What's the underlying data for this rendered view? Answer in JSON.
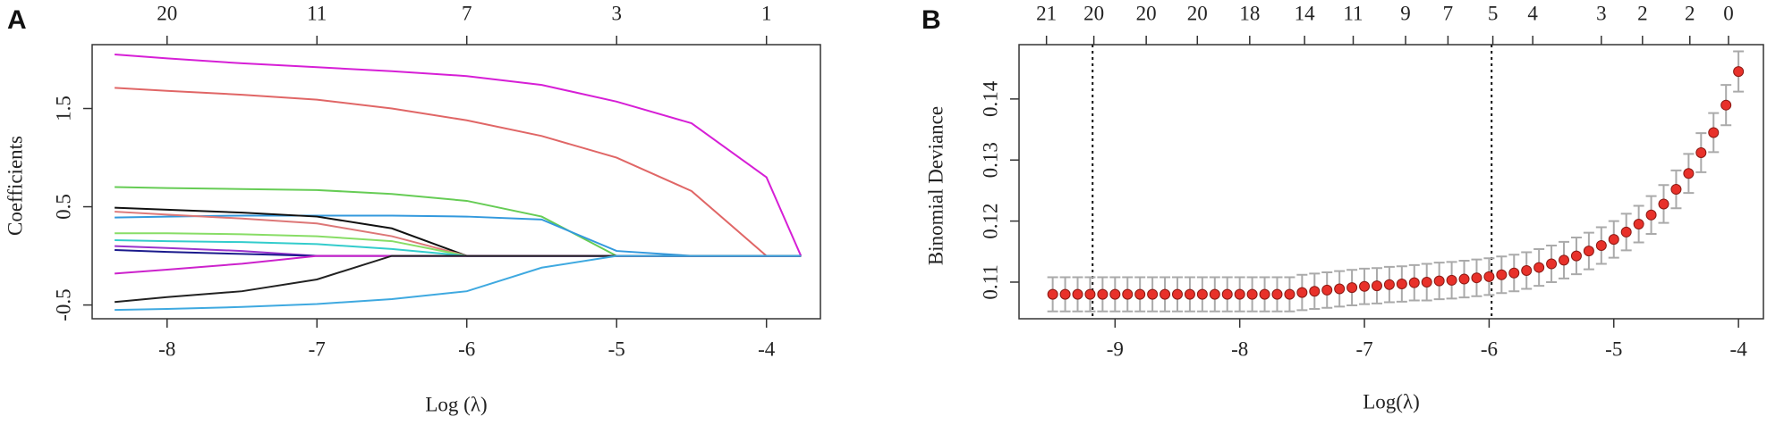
{
  "chart_data": [
    {
      "type": "line",
      "label": "A",
      "xlabel": "Log (λ)",
      "ylabel": "Coefficients",
      "xlim": [
        -8.5,
        -3.64
      ],
      "ylim": [
        -0.64,
        2.15
      ],
      "xticks": [
        -8,
        -7,
        -6,
        -5,
        -4
      ],
      "yticks": [
        -0.5,
        0.5,
        1.5
      ],
      "x2ticks": [
        {
          "value": -8,
          "label": "20"
        },
        {
          "value": -7,
          "label": "11"
        },
        {
          "value": -6,
          "label": "7"
        },
        {
          "value": -5,
          "label": "3"
        },
        {
          "value": -4,
          "label": "1"
        }
      ],
      "x": [
        -8.35,
        -8,
        -7.5,
        -7,
        -6.5,
        -6,
        -5.5,
        -5,
        -4.5,
        -4,
        -3.77
      ],
      "series": [
        {
          "color": "#d61fd6",
          "values": [
            2.05,
            2.01,
            1.96,
            1.92,
            1.88,
            1.83,
            1.74,
            1.57,
            1.35,
            0.8,
            0
          ]
        },
        {
          "color": "#e06666",
          "values": [
            1.71,
            1.68,
            1.64,
            1.59,
            1.5,
            1.38,
            1.22,
            1.0,
            0.66,
            0,
            0
          ]
        },
        {
          "color": "#66cc55",
          "values": [
            0.7,
            0.69,
            0.68,
            0.67,
            0.63,
            0.56,
            0.4,
            0,
            0,
            0,
            0
          ]
        },
        {
          "color": "#3399dd",
          "values": [
            0.39,
            0.4,
            0.41,
            0.41,
            0.41,
            0.4,
            0.37,
            0.05,
            0,
            0,
            0
          ]
        },
        {
          "color": "#111111",
          "values": [
            0.49,
            0.47,
            0.44,
            0.4,
            0.28,
            0,
            0,
            0,
            0,
            0,
            0
          ]
        },
        {
          "color": "#dd7777",
          "values": [
            0.45,
            0.42,
            0.38,
            0.33,
            0.2,
            0,
            0,
            0,
            0,
            0,
            0
          ]
        },
        {
          "color": "#88dd66",
          "values": [
            0.23,
            0.23,
            0.22,
            0.2,
            0.15,
            0,
            0,
            0,
            0,
            0,
            0
          ]
        },
        {
          "color": "#33cccc",
          "values": [
            0.16,
            0.15,
            0.14,
            0.12,
            0.07,
            0,
            0,
            0,
            0,
            0,
            0
          ]
        },
        {
          "color": "#9933cc",
          "values": [
            0.1,
            0.08,
            0.05,
            0,
            0,
            0,
            0,
            0,
            0,
            0,
            0
          ]
        },
        {
          "color": "#1a1a8c",
          "values": [
            0.06,
            0.04,
            0.02,
            0,
            0,
            0,
            0,
            0,
            0,
            0,
            0
          ]
        },
        {
          "color": "#cc22cc",
          "values": [
            -0.18,
            -0.14,
            -0.08,
            0,
            0,
            0,
            0,
            0,
            0,
            0,
            0
          ]
        },
        {
          "color": "#222222",
          "values": [
            -0.47,
            -0.42,
            -0.36,
            -0.24,
            0,
            0,
            0,
            0,
            0,
            0,
            0
          ]
        },
        {
          "color": "#3fa9e0",
          "values": [
            -0.55,
            -0.54,
            -0.52,
            -0.49,
            -0.44,
            -0.36,
            -0.12,
            0,
            0,
            0,
            0
          ]
        }
      ]
    },
    {
      "type": "errorbar",
      "label": "B",
      "xlabel": "Log(λ)",
      "ylabel": "Binomial Deviance",
      "xlim": [
        -9.77,
        -3.8
      ],
      "ylim": [
        0.104,
        0.1489
      ],
      "xticks": [
        -9,
        -8,
        -7,
        -6,
        -5,
        -4
      ],
      "yticks": [
        0.11,
        0.12,
        0.13,
        0.14
      ],
      "x2ticks": [
        {
          "value": -9.55,
          "label": "21"
        },
        {
          "value": -9.17,
          "label": "20"
        },
        {
          "value": -8.75,
          "label": "20"
        },
        {
          "value": -8.34,
          "label": "20"
        },
        {
          "value": -7.92,
          "label": "18"
        },
        {
          "value": -7.48,
          "label": "14"
        },
        {
          "value": -7.09,
          "label": "11"
        },
        {
          "value": -6.67,
          "label": "9"
        },
        {
          "value": -6.33,
          "label": "7"
        },
        {
          "value": -5.97,
          "label": "5"
        },
        {
          "value": -5.65,
          "label": "4"
        },
        {
          "value": -5.1,
          "label": "3"
        },
        {
          "value": -4.77,
          "label": "2"
        },
        {
          "value": -4.39,
          "label": "2"
        },
        {
          "value": -4.08,
          "label": "0"
        }
      ],
      "vlines": [
        -9.18,
        -5.98
      ],
      "color": "#e8312a",
      "error_color": "#aaaaaa",
      "x": [
        -9.5,
        -9.4,
        -9.3,
        -9.2,
        -9.1,
        -9.0,
        -8.9,
        -8.8,
        -8.7,
        -8.6,
        -8.5,
        -8.4,
        -8.3,
        -8.2,
        -8.1,
        -8.0,
        -7.9,
        -7.8,
        -7.7,
        -7.6,
        -7.5,
        -7.4,
        -7.3,
        -7.2,
        -7.1,
        -7.0,
        -6.9,
        -6.8,
        -6.7,
        -6.6,
        -6.5,
        -6.4,
        -6.3,
        -6.2,
        -6.1,
        -6.0,
        -5.9,
        -5.8,
        -5.7,
        -5.6,
        -5.5,
        -5.4,
        -5.3,
        -5.2,
        -5.1,
        -5.0,
        -4.9,
        -4.8,
        -4.7,
        -4.6,
        -4.5,
        -4.4,
        -4.3,
        -4.2,
        -4.1,
        -4.0
      ],
      "values": [
        0.108,
        0.108,
        0.108,
        0.108,
        0.108,
        0.108,
        0.108,
        0.108,
        0.108,
        0.108,
        0.108,
        0.108,
        0.108,
        0.108,
        0.108,
        0.108,
        0.108,
        0.108,
        0.108,
        0.108,
        0.1083,
        0.1085,
        0.1087,
        0.1089,
        0.1091,
        0.1093,
        0.1094,
        0.1096,
        0.1097,
        0.1099,
        0.11,
        0.1102,
        0.1103,
        0.1105,
        0.1107,
        0.1109,
        0.1112,
        0.1115,
        0.1119,
        0.1124,
        0.113,
        0.1136,
        0.1143,
        0.1151,
        0.116,
        0.117,
        0.1182,
        0.1195,
        0.121,
        0.1228,
        0.1252,
        0.1278,
        0.1312,
        0.1345,
        0.139,
        0.1445
      ],
      "errors": [
        0.0028,
        0.0028,
        0.0028,
        0.0028,
        0.0028,
        0.0028,
        0.0028,
        0.0028,
        0.0028,
        0.0028,
        0.0028,
        0.0028,
        0.0028,
        0.0028,
        0.0028,
        0.0028,
        0.0028,
        0.0028,
        0.0028,
        0.0028,
        0.0029,
        0.0029,
        0.0029,
        0.0029,
        0.0029,
        0.0029,
        0.0029,
        0.0029,
        0.0029,
        0.0029,
        0.003,
        0.003,
        0.003,
        0.003,
        0.003,
        0.003,
        0.003,
        0.003,
        0.003,
        0.003,
        0.003,
        0.003,
        0.003,
        0.003,
        0.003,
        0.003,
        0.003,
        0.003,
        0.0031,
        0.0031,
        0.0031,
        0.0032,
        0.0032,
        0.0032,
        0.0033,
        0.0033
      ]
    }
  ]
}
